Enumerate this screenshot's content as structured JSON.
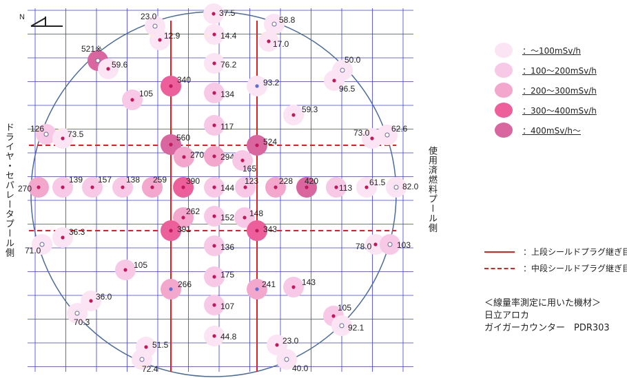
{
  "north_label": "N",
  "left_side_label": "ドライヤ・セパレータプール側",
  "right_side_label": "使用済燃料プール側",
  "legend": [
    {
      "label": "：～100mSv/h",
      "color": "#fbe4f3"
    },
    {
      "label": "：100～200mSv/h",
      "color": "#f8c9e6"
    },
    {
      "label": "：200～300mSv/h",
      "color": "#f3a7cc"
    },
    {
      "label": "：300～400mSv/h",
      "color": "#ec5f9a"
    },
    {
      "label": "：400mSv/h～",
      "color": "#d9669f"
    }
  ],
  "line_legend": [
    {
      "label": "：上段シールドプラグ継ぎ目",
      "style": "solid",
      "color": "#e02020"
    },
    {
      "label": "：中段シールドプラグ継ぎ目",
      "style": "dashed",
      "color": "#e02020"
    }
  ],
  "equipment": {
    "heading": "＜線量率測定に用いた機材＞",
    "maker": "日立アロカ",
    "model": "ガイガーカウンター　PDR303"
  },
  "colors": {
    "grid": "#3b3bd6",
    "circle": "#4b6b9a",
    "seam": "#e02020",
    "dot": "#c2185b",
    "dot_blue": "#5b6fd6"
  },
  "measurements": [
    {
      "label": "37.5",
      "value": 37.5
    },
    {
      "label": "23.0",
      "value": 23.0
    },
    {
      "label": "58.8",
      "value": 58.8
    },
    {
      "label": "14.4",
      "value": 14.4
    },
    {
      "label": "12.9",
      "value": 12.9
    },
    {
      "label": "17.0",
      "value": 17.0
    },
    {
      "label": "521※",
      "value": 521
    },
    {
      "label": "59.6",
      "value": 59.6
    },
    {
      "label": "76.2",
      "value": 76.2
    },
    {
      "label": "50.0",
      "value": 50.0
    },
    {
      "label": "340",
      "value": 340
    },
    {
      "label": "93.2",
      "value": 93.2
    },
    {
      "label": "96.5",
      "value": 96.5
    },
    {
      "label": "105",
      "value": 105
    },
    {
      "label": "134",
      "value": 134
    },
    {
      "label": "59.3",
      "value": 59.3
    },
    {
      "label": "117",
      "value": 117
    },
    {
      "label": "126",
      "value": 126
    },
    {
      "label": "73.5",
      "value": 73.5
    },
    {
      "label": "73.0",
      "value": 73.0
    },
    {
      "label": "62.6",
      "value": 62.6
    },
    {
      "label": "560",
      "value": 560
    },
    {
      "label": "524",
      "value": 524
    },
    {
      "label": "270",
      "value": 270
    },
    {
      "label": "294",
      "value": 294
    },
    {
      "label": "165",
      "value": 165
    },
    {
      "label": "270",
      "value": 270
    },
    {
      "label": "139",
      "value": 139
    },
    {
      "label": "157",
      "value": 157
    },
    {
      "label": "138",
      "value": 138
    },
    {
      "label": "259",
      "value": 259
    },
    {
      "label": "390",
      "value": 390
    },
    {
      "label": "144",
      "value": 144
    },
    {
      "label": "123",
      "value": 123
    },
    {
      "label": "228",
      "value": 228
    },
    {
      "label": "420",
      "value": 420
    },
    {
      "label": "113",
      "value": 113
    },
    {
      "label": "61.5",
      "value": 61.5
    },
    {
      "label": "82.0",
      "value": 82.0
    },
    {
      "label": "262",
      "value": 262
    },
    {
      "label": "152",
      "value": 152
    },
    {
      "label": "148",
      "value": 148
    },
    {
      "label": "36.3",
      "value": 36.3
    },
    {
      "label": "391",
      "value": 391
    },
    {
      "label": "343",
      "value": 343
    },
    {
      "label": "71.0",
      "value": 71.0
    },
    {
      "label": "136",
      "value": 136
    },
    {
      "label": "78.0",
      "value": 78.0
    },
    {
      "label": "103",
      "value": 103
    },
    {
      "label": "105",
      "value": 105
    },
    {
      "label": "175",
      "value": 175
    },
    {
      "label": "266",
      "value": 266
    },
    {
      "label": "241",
      "value": 241
    },
    {
      "label": "143",
      "value": 143
    },
    {
      "label": "36.0",
      "value": 36.0
    },
    {
      "label": "107",
      "value": 107
    },
    {
      "label": "70.3",
      "value": 70.3
    },
    {
      "label": "105",
      "value": 105
    },
    {
      "label": "92.1",
      "value": 92.1
    },
    {
      "label": "44.8",
      "value": 44.8
    },
    {
      "label": "51.5",
      "value": 51.5
    },
    {
      "label": "23.0",
      "value": 23.0
    },
    {
      "label": "72.4",
      "value": 72.4
    },
    {
      "label": "40.0",
      "value": 40.0
    }
  ]
}
